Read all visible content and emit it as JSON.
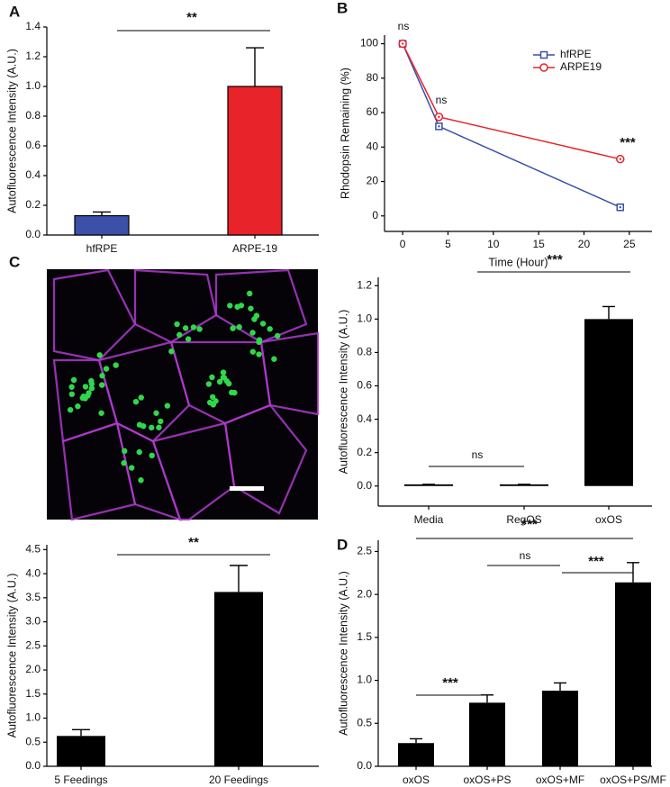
{
  "micrograph": {
    "panel": "C"
  },
  "chart_data": [
    {
      "type": "bar",
      "panel": "A",
      "ylabel": "Autofluorescence Intensity (A.U.)",
      "categories": [
        "hfRPE",
        "ARPE-19"
      ],
      "values": [
        0.13,
        1.0
      ],
      "errors": [
        0.025,
        0.26
      ],
      "colors": [
        "#3b50a6",
        "#e8232a"
      ],
      "ylim": [
        0,
        1.4
      ],
      "yticks": [
        {
          "value": 0,
          "label": "0.0"
        },
        0.2,
        0.4,
        0.6,
        0.8,
        {
          "value": 1,
          "label": "1.0"
        },
        1.2,
        1.4
      ],
      "annotations": [
        "**"
      ]
    },
    {
      "type": "line",
      "panel": "B",
      "xlabel": "Time (Hour)",
      "ylabel": "Rhodopsin Remaining (%)",
      "x": [
        0,
        4,
        24
      ],
      "series": [
        {
          "name": "hfRPE",
          "color": "#3b50a6",
          "marker": "square",
          "values": [
            100,
            52,
            5
          ]
        },
        {
          "name": "ARPE19",
          "color": "#e8232a",
          "marker": "circle",
          "values": [
            100,
            57.5,
            33
          ]
        }
      ],
      "xlim": [
        -2,
        27.5
      ],
      "xticks": [
        0,
        5,
        10,
        15,
        20,
        25
      ],
      "ylim": [
        -9,
        105
      ],
      "yticks": [
        0,
        20,
        40,
        60,
        80,
        100
      ],
      "legend": "upper right",
      "annotations": [
        "ns",
        "ns",
        "***"
      ]
    },
    {
      "type": "bar",
      "ylabel": "Autofluorescence Intensity (A.U.)",
      "categories": [
        "Media",
        "RegOS",
        "oxOS"
      ],
      "values": [
        0.01,
        0.01,
        1.0
      ],
      "errors": [
        0,
        0,
        0.075
      ],
      "color": "#000000",
      "ylim": [
        -0.12,
        1.25
      ],
      "yticks": [
        {
          "value": 0,
          "label": "0.0"
        },
        0.2,
        0.4,
        0.6,
        0.8,
        {
          "value": 1,
          "label": "1.0"
        },
        1.2
      ],
      "annotations": [
        "***",
        "ns"
      ]
    },
    {
      "type": "bar",
      "ylabel": "Autofluorescence Intensity (A.U.)",
      "categories": [
        "5 Feedings",
        "20 Feedings"
      ],
      "values": [
        0.63,
        3.62
      ],
      "errors": [
        0.13,
        0.55
      ],
      "color": "#000000",
      "ylim": [
        0,
        4.6
      ],
      "yticks": [
        {
          "value": 0,
          "label": "0.0"
        },
        0.5,
        {
          "value": 1,
          "label": "1.0"
        },
        1.5,
        {
          "value": 2,
          "label": "2.0"
        },
        2.5,
        {
          "value": 3,
          "label": "3.0"
        },
        3.5,
        {
          "value": 4,
          "label": "4.0"
        },
        4.5
      ],
      "annotations": [
        "**"
      ]
    },
    {
      "type": "bar",
      "panel": "D",
      "ylabel": "Autofluorescence Intensity (A.U.)",
      "categories": [
        "oxOS",
        "oxOS+PS",
        "oxOS+MF",
        "oxOS+PS/MF"
      ],
      "values": [
        0.27,
        0.74,
        0.88,
        2.14
      ],
      "errors": [
        0.05,
        0.09,
        0.09,
        0.23
      ],
      "color": "#000000",
      "ylim": [
        0,
        2.63
      ],
      "yticks": [
        {
          "value": 0,
          "label": "0.0"
        },
        0.5,
        {
          "value": 1,
          "label": "1.0"
        },
        1.5,
        {
          "value": 2,
          "label": "2.0"
        },
        2.5
      ],
      "annotations": [
        "***",
        "***",
        "ns",
        "***"
      ]
    }
  ]
}
